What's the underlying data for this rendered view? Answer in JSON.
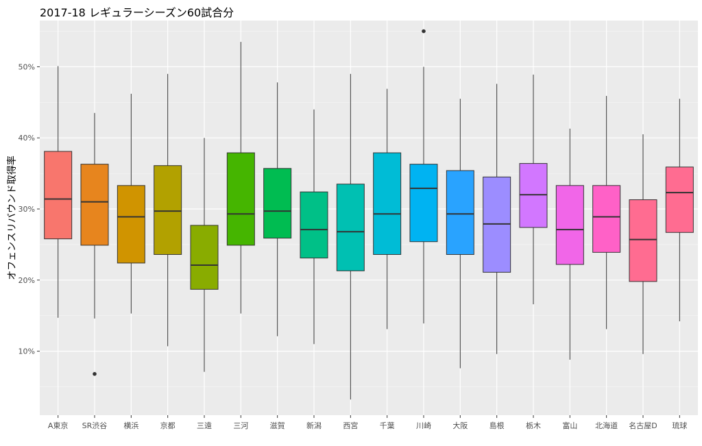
{
  "chart_data": {
    "type": "box",
    "title": "2017-18 レギュラーシーズン60試合分",
    "xlabel": "",
    "ylabel": "オフェンスリバウンド取得率",
    "ylim": [
      1,
      56.5
    ],
    "yticks": [
      10,
      20,
      30,
      40,
      50
    ],
    "ytick_labels": [
      "10%",
      "20%",
      "30%",
      "40%",
      "50%"
    ],
    "grid": true,
    "legend": "none",
    "categories": [
      "A東京",
      "SR渋谷",
      "横浜",
      "京都",
      "三遠",
      "三河",
      "滋賀",
      "新潟",
      "西宮",
      "千葉",
      "川崎",
      "大阪",
      "島根",
      "栃木",
      "富山",
      "北海道",
      "名古屋D",
      "琉球"
    ],
    "colors": [
      "#F8766D",
      "#E7851E",
      "#D09400",
      "#B2A100",
      "#89AC00",
      "#45B500",
      "#00BC51",
      "#00C087",
      "#00C0B2",
      "#00BCD6",
      "#00B3F2",
      "#29A3FF",
      "#9C8DFF",
      "#D277FF",
      "#F166E8",
      "#FF61C7",
      "#FF6C91",
      "#FF6C91"
    ],
    "boxes": [
      {
        "min": 14.7,
        "q1": 25.8,
        "median": 31.4,
        "q3": 38.1,
        "max": 50.1,
        "outliers": []
      },
      {
        "min": 14.6,
        "q1": 24.9,
        "median": 31.0,
        "q3": 36.3,
        "max": 43.5,
        "outliers": [
          6.8
        ]
      },
      {
        "min": 15.3,
        "q1": 22.4,
        "median": 28.9,
        "q3": 33.3,
        "max": 46.2,
        "outliers": []
      },
      {
        "min": 10.7,
        "q1": 23.6,
        "median": 29.7,
        "q3": 36.1,
        "max": 49.0,
        "outliers": []
      },
      {
        "min": 7.1,
        "q1": 18.7,
        "median": 22.1,
        "q3": 27.7,
        "max": 40.0,
        "outliers": []
      },
      {
        "min": 15.3,
        "q1": 24.9,
        "median": 29.3,
        "q3": 37.9,
        "max": 53.5,
        "outliers": []
      },
      {
        "min": 12.1,
        "q1": 25.9,
        "median": 29.7,
        "q3": 35.7,
        "max": 47.8,
        "outliers": []
      },
      {
        "min": 11.0,
        "q1": 23.1,
        "median": 27.1,
        "q3": 32.4,
        "max": 44.0,
        "outliers": []
      },
      {
        "min": 3.2,
        "q1": 21.3,
        "median": 26.8,
        "q3": 33.5,
        "max": 49.0,
        "outliers": []
      },
      {
        "min": 13.1,
        "q1": 23.6,
        "median": 29.3,
        "q3": 37.9,
        "max": 46.9,
        "outliers": []
      },
      {
        "min": 13.9,
        "q1": 25.4,
        "median": 32.9,
        "q3": 36.3,
        "max": 50.0,
        "outliers": [
          55.0
        ]
      },
      {
        "min": 7.6,
        "q1": 23.6,
        "median": 29.3,
        "q3": 35.4,
        "max": 45.5,
        "outliers": []
      },
      {
        "min": 9.6,
        "q1": 21.1,
        "median": 27.9,
        "q3": 34.5,
        "max": 47.6,
        "outliers": []
      },
      {
        "min": 16.6,
        "q1": 27.4,
        "median": 32.0,
        "q3": 36.4,
        "max": 48.9,
        "outliers": []
      },
      {
        "min": 8.8,
        "q1": 22.2,
        "median": 27.1,
        "q3": 33.3,
        "max": 41.3,
        "outliers": []
      },
      {
        "min": 13.1,
        "q1": 23.9,
        "median": 28.9,
        "q3": 33.3,
        "max": 45.9,
        "outliers": []
      },
      {
        "min": 9.6,
        "q1": 19.8,
        "median": 25.7,
        "q3": 31.3,
        "max": 40.5,
        "outliers": []
      },
      {
        "min": 14.2,
        "q1": 26.7,
        "median": 32.3,
        "q3": 35.9,
        "max": 45.5,
        "outliers": []
      }
    ]
  }
}
